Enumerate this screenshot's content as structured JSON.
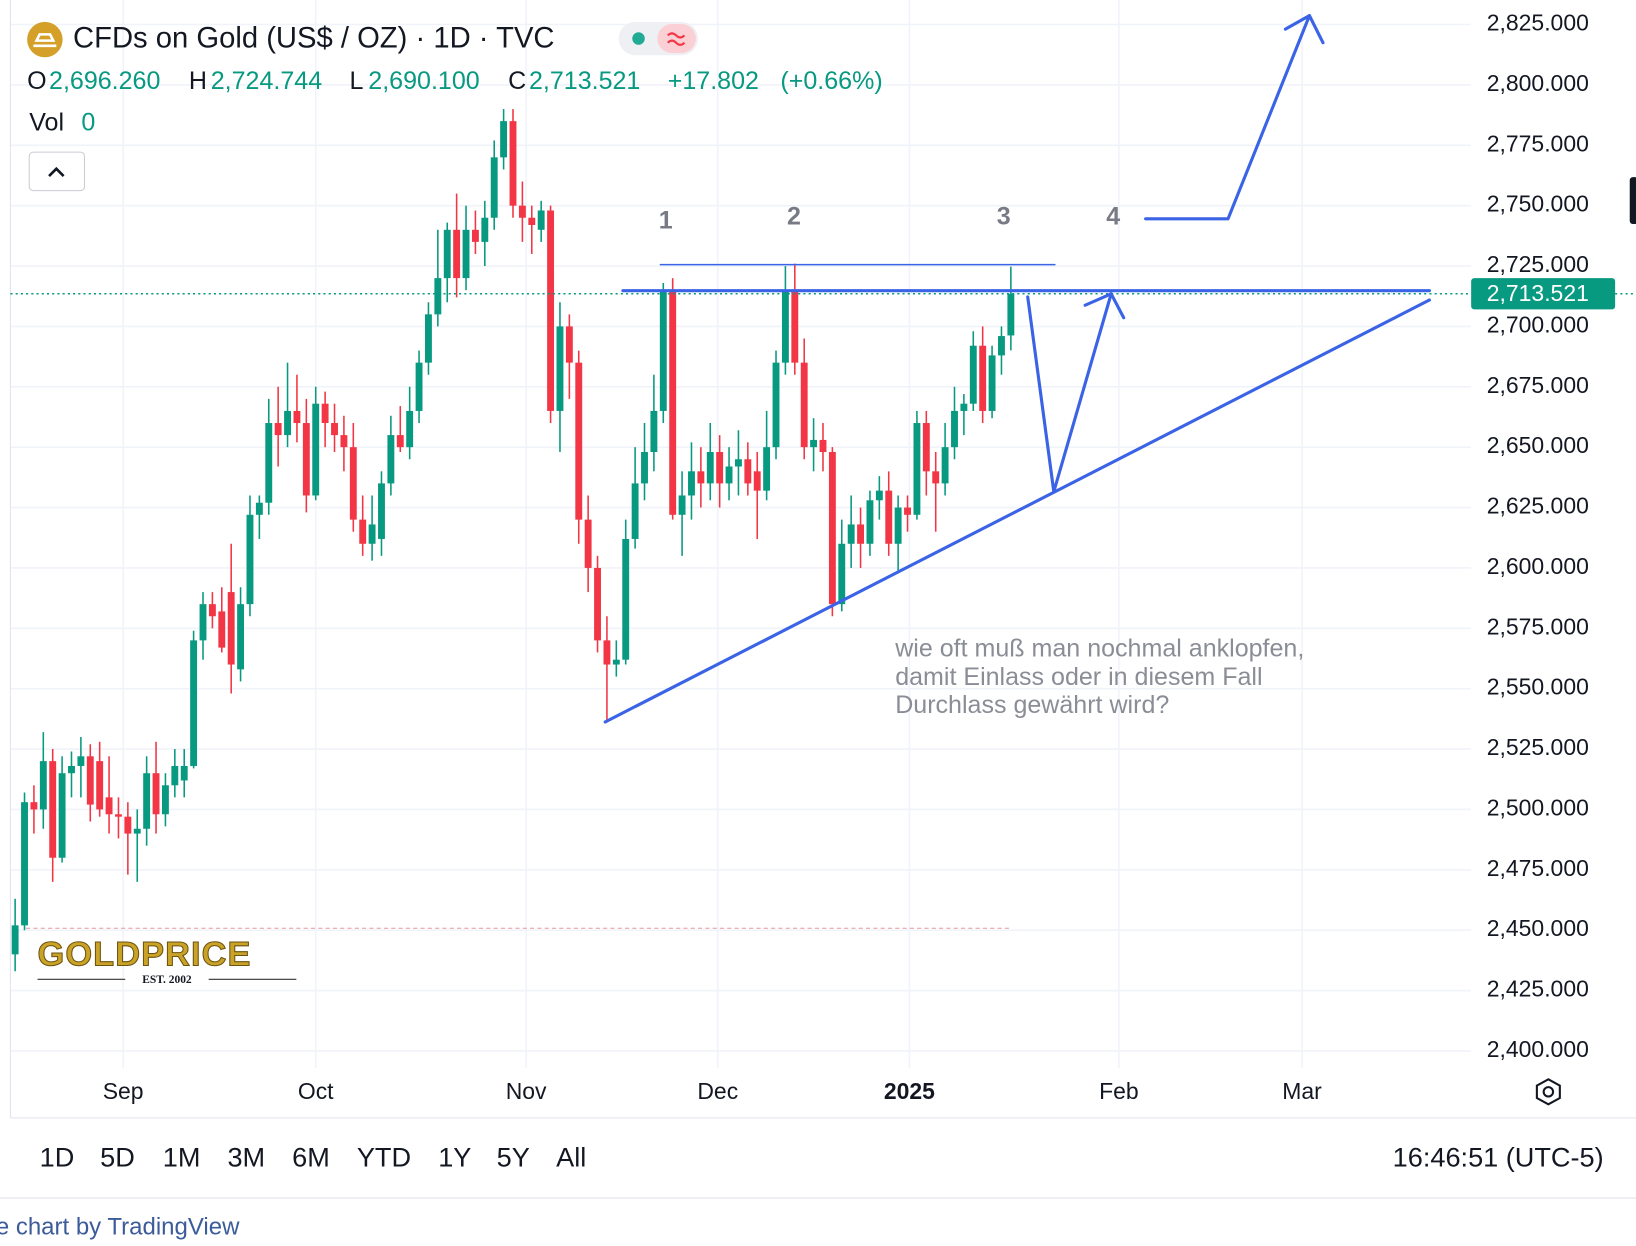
{
  "chart_data": {
    "type": "candlestick",
    "title": "CFDs on Gold (US$ / OZ) · 1D · TVC",
    "legend": {
      "open_key": "O",
      "open": {
        "value": 2696.26,
        "label": "2,696.260"
      },
      "high_key": "H",
      "high": {
        "value": 2724.744,
        "label": "2,724.744"
      },
      "low_key": "L",
      "low": {
        "value": 2690.1,
        "label": "2,690.100"
      },
      "close_key": "C",
      "close": {
        "value": 2713.521,
        "label": "2,713.521"
      },
      "change": {
        "value": 17.802,
        "label": "+17.802"
      },
      "change_pct": {
        "value": 0.66,
        "label": "(+0.66%)"
      },
      "volume_key": "Vol",
      "volume": 0
    },
    "up_color": "#089981",
    "down_color": "#f23645",
    "open": [
      2440,
      2452,
      2503,
      2500,
      2520,
      2480,
      2515,
      2518,
      2522,
      2520,
      2505,
      2498,
      2497,
      2490,
      2492,
      2515,
      2498,
      2510,
      2512,
      2518,
      2570,
      2585,
      2582,
      2590,
      2558,
      2585,
      2622,
      2627,
      2660,
      2655,
      2665,
      2660,
      2630,
      2668,
      2660,
      2655,
      2650,
      2620,
      2610,
      2612,
      2635,
      2655,
      2650,
      2665,
      2685,
      2705,
      2720,
      2740,
      2720,
      2740,
      2735,
      2745,
      2770,
      2785,
      2750,
      2745,
      2740,
      2748,
      2665,
      2700,
      2685,
      2620,
      2600,
      2570,
      2560,
      2562,
      2612,
      2635,
      2648,
      2665,
      2715,
      2622,
      2630,
      2640,
      2635,
      2648,
      2635,
      2642,
      2645,
      2640,
      2632,
      2650,
      2685,
      2715,
      2685,
      2650,
      2653,
      2648,
      2585,
      2610,
      2618,
      2610,
      2628,
      2632,
      2610,
      2625,
      2622,
      2660,
      2640,
      2635,
      2650,
      2665,
      2668,
      2692,
      2665,
      2688,
      2696.26
    ],
    "high": [
      2463,
      2507,
      2510,
      2532,
      2525,
      2522,
      2524,
      2530,
      2527,
      2528,
      2522,
      2505,
      2503,
      2500,
      2522,
      2528,
      2515,
      2525,
      2525,
      2574,
      2590,
      2590,
      2592,
      2610,
      2592,
      2630,
      2630,
      2670,
      2675,
      2685,
      2680,
      2670,
      2675,
      2673,
      2668,
      2663,
      2660,
      2630,
      2630,
      2640,
      2663,
      2667,
      2675,
      2690,
      2710,
      2740,
      2743,
      2755,
      2750,
      2748,
      2752,
      2777,
      2790,
      2790,
      2760,
      2750,
      2752,
      2750,
      2710,
      2705,
      2690,
      2630,
      2605,
      2580,
      2570,
      2620,
      2650,
      2660,
      2680,
      2718,
      2720,
      2640,
      2652,
      2650,
      2660,
      2655,
      2650,
      2657,
      2652,
      2648,
      2665,
      2690,
      2725,
      2726,
      2695,
      2662,
      2660,
      2650,
      2620,
      2630,
      2625,
      2632,
      2638,
      2640,
      2630,
      2630,
      2665,
      2665,
      2648,
      2660,
      2675,
      2672,
      2698,
      2700,
      2692,
      2700,
      2724.744
    ],
    "low": [
      2433,
      2450,
      2490,
      2492,
      2470,
      2478,
      2505,
      2505,
      2495,
      2497,
      2490,
      2488,
      2473,
      2470,
      2485,
      2490,
      2493,
      2505,
      2505,
      2517,
      2562,
      2575,
      2565,
      2548,
      2553,
      2580,
      2612,
      2622,
      2642,
      2650,
      2652,
      2623,
      2628,
      2650,
      2648,
      2640,
      2615,
      2605,
      2603,
      2605,
      2630,
      2648,
      2645,
      2660,
      2680,
      2700,
      2710,
      2712,
      2715,
      2730,
      2725,
      2740,
      2765,
      2745,
      2735,
      2730,
      2735,
      2660,
      2648,
      2670,
      2610,
      2590,
      2565,
      2537,
      2555,
      2560,
      2608,
      2628,
      2640,
      2660,
      2620,
      2605,
      2620,
      2625,
      2628,
      2625,
      2628,
      2630,
      2630,
      2612,
      2628,
      2645,
      2680,
      2680,
      2645,
      2640,
      2640,
      2580,
      2582,
      2600,
      2600,
      2605,
      2620,
      2605,
      2598,
      2615,
      2620,
      2630,
      2615,
      2630,
      2645,
      2655,
      2665,
      2660,
      2662,
      2680,
      2690.1
    ],
    "close": [
      2452,
      2503,
      2500,
      2520,
      2480,
      2515,
      2518,
      2522,
      2502,
      2500,
      2498,
      2497,
      2490,
      2492,
      2515,
      2498,
      2510,
      2518,
      2518,
      2570,
      2585,
      2580,
      2567,
      2560,
      2585,
      2622,
      2627,
      2660,
      2655,
      2665,
      2660,
      2630,
      2668,
      2660,
      2655,
      2650,
      2620,
      2610,
      2618,
      2635,
      2655,
      2650,
      2665,
      2685,
      2705,
      2720,
      2740,
      2720,
      2740,
      2735,
      2745,
      2770,
      2785,
      2750,
      2745,
      2742,
      2748,
      2665,
      2700,
      2685,
      2620,
      2600,
      2570,
      2560,
      2562,
      2612,
      2635,
      2648,
      2665,
      2715,
      2622,
      2630,
      2640,
      2635,
      2648,
      2635,
      2642,
      2645,
      2635,
      2632,
      2650,
      2685,
      2715,
      2685,
      2650,
      2653,
      2648,
      2585,
      2610,
      2618,
      2610,
      2628,
      2632,
      2610,
      2625,
      2622,
      2660,
      2640,
      2635,
      2650,
      2665,
      2668,
      2692,
      2665,
      2688,
      2696,
      2713.521
    ],
    "xlim": [
      -0.5,
      155
    ],
    "xticks": [
      {
        "value": 11.5,
        "label": "Sep"
      },
      {
        "value": 32,
        "label": "Oct"
      },
      {
        "value": 54.4,
        "label": "Nov"
      },
      {
        "value": 74.8,
        "label": "Dec"
      },
      {
        "value": 95.2,
        "label": "2025"
      },
      {
        "value": 117.5,
        "label": "Feb"
      },
      {
        "value": 137,
        "label": "Mar"
      }
    ],
    "ylim": [
      2393,
      2833
    ],
    "yticks": [
      {
        "value": 2400,
        "label": "2,400.000"
      },
      {
        "value": 2425,
        "label": "2,425.000"
      },
      {
        "value": 2450,
        "label": "2,450.000"
      },
      {
        "value": 2475,
        "label": "2,475.000"
      },
      {
        "value": 2500,
        "label": "2,500.000"
      },
      {
        "value": 2525,
        "label": "2,525.000"
      },
      {
        "value": 2550,
        "label": "2,550.000"
      },
      {
        "value": 2575,
        "label": "2,575.000"
      },
      {
        "value": 2600,
        "label": "2,600.000"
      },
      {
        "value": 2625,
        "label": "2,625.000"
      },
      {
        "value": 2650,
        "label": "2,650.000"
      },
      {
        "value": 2675,
        "label": "2,675.000"
      },
      {
        "value": 2700,
        "label": "2,700.000"
      },
      {
        "value": 2725,
        "label": "2,725.000"
      },
      {
        "value": 2750,
        "label": "2,750.000"
      },
      {
        "value": 2775,
        "label": "2,775.000"
      },
      {
        "value": 2800,
        "label": "2,800.000"
      },
      {
        "value": 2825,
        "label": "2,825.000"
      }
    ],
    "grid": true,
    "last_price": {
      "value": 2713.521,
      "label": "2,713.521"
    },
    "wave_labels": [
      "1",
      "2",
      "3",
      "4"
    ],
    "annotation": [
      "wie oft muß man nochmal anklopfen,",
      "damit Einlass oder in diesem Fall",
      "Durchlass gewährt wird?"
    ],
    "logo": {
      "name": "GOLDPRICE",
      "tagline": "EST. 2002"
    }
  },
  "toolbar": {
    "ranges": [
      "1D",
      "5D",
      "1M",
      "3M",
      "6M",
      "YTD",
      "1Y",
      "5Y",
      "All"
    ],
    "time": "16:46:51 (UTC-5)"
  },
  "footer": "e chart by TradingView"
}
